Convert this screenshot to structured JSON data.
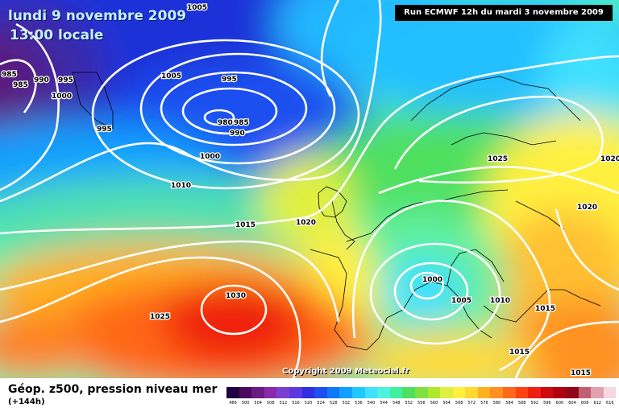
{
  "title": {
    "date": "lundi 9 novembre 2009",
    "time": "13:00 locale"
  },
  "run": "Run ECMWF 12h du mardi 3 novembre 2009",
  "copyright": "Copyright 2009 Meteociel.fr",
  "legend": {
    "title": "Géop. z500, pression niveau mer",
    "subtitle": "(+144h)",
    "scale_labels": [
      "486",
      "500",
      "504",
      "508",
      "512",
      "516",
      "520",
      "524",
      "528",
      "532",
      "536",
      "540",
      "544",
      "548",
      "552",
      "556",
      "560",
      "564",
      "568",
      "572",
      "576",
      "580",
      "584",
      "588",
      "592",
      "596",
      "600",
      "604",
      "608",
      "612",
      "616"
    ],
    "scale_colors": [
      "#200040",
      "#4b0a5e",
      "#6a1b84",
      "#8a2aa6",
      "#7b3fd0",
      "#5a3ae0",
      "#3030e0",
      "#1e50f0",
      "#1078f8",
      "#10a0ff",
      "#20c8ff",
      "#40e0ff",
      "#50f0e0",
      "#40f0a0",
      "#50e060",
      "#80e040",
      "#b0e830",
      "#e0f040",
      "#fff040",
      "#ffd830",
      "#ffb020",
      "#ff9020",
      "#ff6818",
      "#ff4010",
      "#f02010",
      "#d00810",
      "#b00010",
      "#900818",
      "#c06070",
      "#e0a0b0",
      "#f8d8e0"
    ]
  },
  "isobars": [
    "1005",
    "985",
    "985",
    "990",
    "995",
    "1000",
    "1005",
    "995",
    "980",
    "985",
    "990",
    "995",
    "1000",
    "1010",
    "1015",
    "1020",
    "1030",
    "1025",
    "1025",
    "1020",
    "1020",
    "1000",
    "1005",
    "1010",
    "1015",
    "1015",
    "1015"
  ],
  "colors": {
    "isobar": "#ffffff",
    "coast": "#000000"
  }
}
